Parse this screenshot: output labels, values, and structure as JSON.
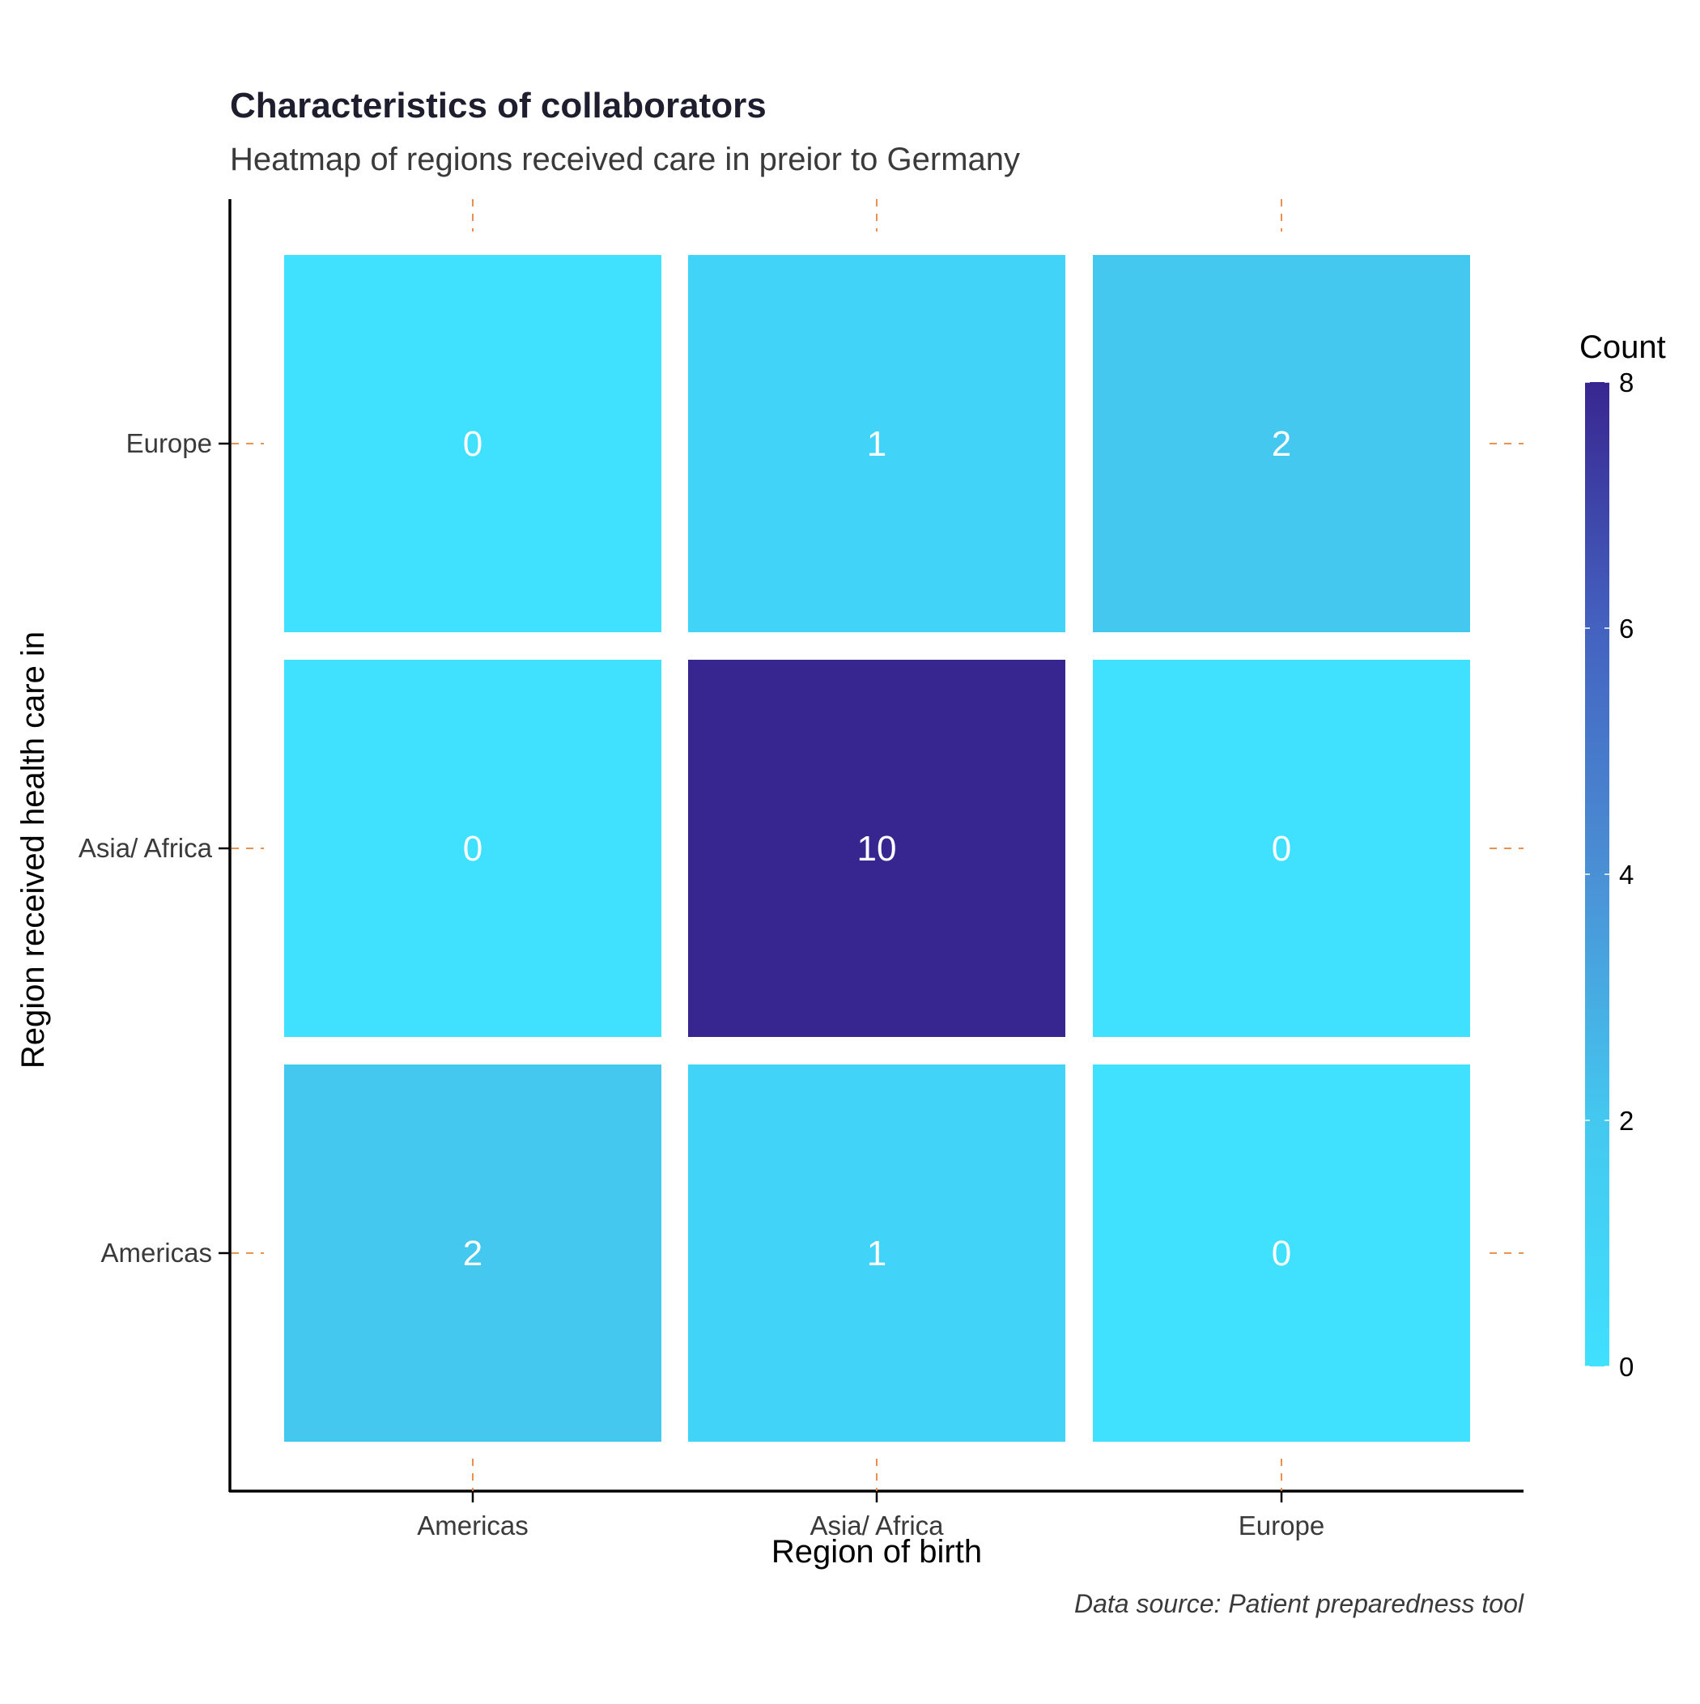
{
  "chart_data": {
    "type": "heatmap",
    "title": "Characteristics of collaborators",
    "subtitle": "Heatmap of regions received care in preior to Germany",
    "caption": "Data source: Patient preparedness tool",
    "xlabel": "Region of birth",
    "ylabel": "Region received health care in",
    "x_categories": [
      "Americas",
      "Asia/ Africa",
      "Europe"
    ],
    "y_categories": [
      "Americas",
      "Asia/ Africa",
      "Europe"
    ],
    "cells": [
      {
        "x": "Americas",
        "y": "Europe",
        "value": 0
      },
      {
        "x": "Asia/ Africa",
        "y": "Europe",
        "value": 1
      },
      {
        "x": "Europe",
        "y": "Europe",
        "value": 2
      },
      {
        "x": "Americas",
        "y": "Asia/ Africa",
        "value": 0
      },
      {
        "x": "Asia/ Africa",
        "y": "Asia/ Africa",
        "value": 10
      },
      {
        "x": "Europe",
        "y": "Asia/ Africa",
        "value": 0
      },
      {
        "x": "Americas",
        "y": "Americas",
        "value": 2
      },
      {
        "x": "Asia/ Africa",
        "y": "Americas",
        "value": 1
      },
      {
        "x": "Europe",
        "y": "Americas",
        "value": 0
      }
    ],
    "legend": {
      "title": "Count",
      "ticks": [
        0,
        2,
        4,
        6,
        8
      ],
      "range": [
        0,
        8
      ],
      "colors": [
        "#40E0FF",
        "#44C8F0",
        "#4A90D5",
        "#4462C0",
        "#382690"
      ]
    },
    "text_color": "#FFFFFF",
    "tick_color": "#E8833A",
    "grid": false,
    "legend_position": "right"
  }
}
